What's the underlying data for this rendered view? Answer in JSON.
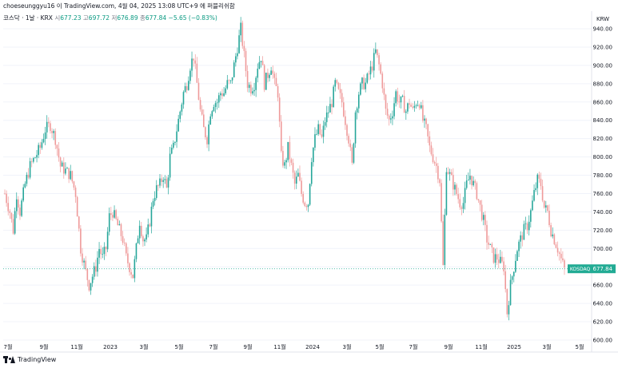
{
  "header": {
    "text": "choeseunggyu16 이 TradingView.com, 4월 04, 2025 13:08 UTC+9 에 퍼블리쉬함"
  },
  "legend": {
    "symbol": "코스닥 · 1날 · KRX",
    "open_label": "시",
    "open_value": "677.23",
    "high_label": "고",
    "high_value": "697.72",
    "low_label": "저",
    "low_value": "676.89",
    "close_label": "종",
    "close_value": "677.84",
    "change": "−5.65 (−0.83%)"
  },
  "footer": {
    "brand": "TradingView"
  },
  "colors": {
    "up": "#26a69a",
    "down": "#ef9a9a",
    "last_price": "#22ab94",
    "grid": "#f0f3fa",
    "axis_text": "#131722"
  },
  "chart_data": {
    "type": "candlestick",
    "currency": "KRW",
    "ylim": [
      600,
      950
    ],
    "yticks": [
      600,
      620,
      640,
      660,
      680,
      700,
      720,
      740,
      760,
      780,
      800,
      820,
      840,
      860,
      880,
      900,
      920,
      940
    ],
    "ytick_labels": [
      "600.00",
      "620.00",
      "640.00",
      "660.00",
      "680.00",
      "700.00",
      "720.00",
      "740.00",
      "760.00",
      "780.00",
      "800.00",
      "820.00",
      "840.00",
      "860.00",
      "880.00",
      "900.00",
      "920.00",
      "940.00"
    ],
    "xticks": [
      "7월",
      "9월",
      "11월",
      "2023",
      "3월",
      "5월",
      "7월",
      "9월",
      "11월",
      "2024",
      "3월",
      "5월",
      "7월",
      "9월",
      "11월",
      "2025",
      "3월",
      "5월"
    ],
    "last_price": {
      "label": "KOSDAQ",
      "value": "677.84",
      "y": 677.84
    },
    "anchors": [
      [
        0,
        760
      ],
      [
        3,
        740
      ],
      [
        5,
        720
      ],
      [
        7,
        760
      ],
      [
        9,
        740
      ],
      [
        12,
        770
      ],
      [
        15,
        790
      ],
      [
        18,
        800
      ],
      [
        21,
        810
      ],
      [
        24,
        830
      ],
      [
        27,
        835
      ],
      [
        30,
        820
      ],
      [
        33,
        790
      ],
      [
        36,
        785
      ],
      [
        39,
        780
      ],
      [
        42,
        760
      ],
      [
        45,
        700
      ],
      [
        48,
        675
      ],
      [
        50,
        660
      ],
      [
        52,
        670
      ],
      [
        54,
        680
      ],
      [
        56,
        700
      ],
      [
        58,
        690
      ],
      [
        60,
        700
      ],
      [
        62,
        735
      ],
      [
        64,
        740
      ],
      [
        66,
        730
      ],
      [
        68,
        720
      ],
      [
        70,
        710
      ],
      [
        72,
        690
      ],
      [
        74,
        680
      ],
      [
        76,
        670
      ],
      [
        78,
        700
      ],
      [
        80,
        730
      ],
      [
        82,
        710
      ],
      [
        84,
        710
      ],
      [
        86,
        730
      ],
      [
        88,
        755
      ],
      [
        90,
        765
      ],
      [
        92,
        770
      ],
      [
        94,
        780
      ],
      [
        96,
        765
      ],
      [
        98,
        800
      ],
      [
        100,
        810
      ],
      [
        102,
        830
      ],
      [
        104,
        850
      ],
      [
        106,
        870
      ],
      [
        108,
        880
      ],
      [
        110,
        900
      ],
      [
        112,
        910
      ],
      [
        114,
        880
      ],
      [
        116,
        850
      ],
      [
        118,
        830
      ],
      [
        120,
        820
      ],
      [
        122,
        850
      ],
      [
        124,
        860
      ],
      [
        126,
        860
      ],
      [
        128,
        870
      ],
      [
        130,
        870
      ],
      [
        132,
        880
      ],
      [
        134,
        880
      ],
      [
        136,
        900
      ],
      [
        138,
        920
      ],
      [
        140,
        940
      ],
      [
        142,
        910
      ],
      [
        144,
        880
      ],
      [
        146,
        875
      ],
      [
        148,
        880
      ],
      [
        150,
        900
      ],
      [
        152,
        910
      ],
      [
        154,
        880
      ],
      [
        156,
        890
      ],
      [
        158,
        900
      ],
      [
        160,
        880
      ],
      [
        162,
        870
      ],
      [
        164,
        800
      ],
      [
        166,
        790
      ],
      [
        168,
        810
      ],
      [
        170,
        790
      ],
      [
        172,
        770
      ],
      [
        174,
        780
      ],
      [
        176,
        760
      ],
      [
        178,
        750
      ],
      [
        180,
        750
      ],
      [
        182,
        800
      ],
      [
        184,
        820
      ],
      [
        186,
        830
      ],
      [
        188,
        820
      ],
      [
        190,
        840
      ],
      [
        192,
        850
      ],
      [
        194,
        860
      ],
      [
        196,
        880
      ],
      [
        198,
        870
      ],
      [
        200,
        860
      ],
      [
        202,
        840
      ],
      [
        204,
        820
      ],
      [
        206,
        790
      ],
      [
        208,
        850
      ],
      [
        210,
        870
      ],
      [
        212,
        880
      ],
      [
        214,
        880
      ],
      [
        216,
        890
      ],
      [
        218,
        900
      ],
      [
        220,
        915
      ],
      [
        222,
        900
      ],
      [
        224,
        880
      ],
      [
        226,
        850
      ],
      [
        228,
        840
      ],
      [
        230,
        850
      ],
      [
        232,
        870
      ],
      [
        234,
        860
      ],
      [
        236,
        860
      ],
      [
        238,
        850
      ],
      [
        240,
        860
      ],
      [
        242,
        850
      ],
      [
        244,
        860
      ],
      [
        246,
        860
      ],
      [
        248,
        840
      ],
      [
        250,
        830
      ],
      [
        252,
        810
      ],
      [
        254,
        800
      ],
      [
        256,
        790
      ],
      [
        258,
        775
      ],
      [
        260,
        680
      ],
      [
        262,
        790
      ],
      [
        264,
        780
      ],
      [
        266,
        770
      ],
      [
        268,
        760
      ],
      [
        270,
        750
      ],
      [
        272,
        750
      ],
      [
        274,
        770
      ],
      [
        276,
        780
      ],
      [
        278,
        770
      ],
      [
        280,
        760
      ],
      [
        282,
        745
      ],
      [
        284,
        730
      ],
      [
        286,
        710
      ],
      [
        288,
        700
      ],
      [
        290,
        690
      ],
      [
        292,
        690
      ],
      [
        294,
        685
      ],
      [
        296,
        680
      ],
      [
        298,
        630
      ],
      [
        300,
        660
      ],
      [
        302,
        680
      ],
      [
        304,
        700
      ],
      [
        306,
        710
      ],
      [
        308,
        720
      ],
      [
        310,
        725
      ],
      [
        312,
        740
      ],
      [
        314,
        760
      ],
      [
        316,
        775
      ],
      [
        318,
        770
      ],
      [
        320,
        745
      ],
      [
        322,
        740
      ],
      [
        324,
        720
      ],
      [
        326,
        710
      ],
      [
        328,
        700
      ],
      [
        330,
        688
      ],
      [
        332,
        677
      ]
    ],
    "x_domain": [
      0,
      332
    ]
  }
}
